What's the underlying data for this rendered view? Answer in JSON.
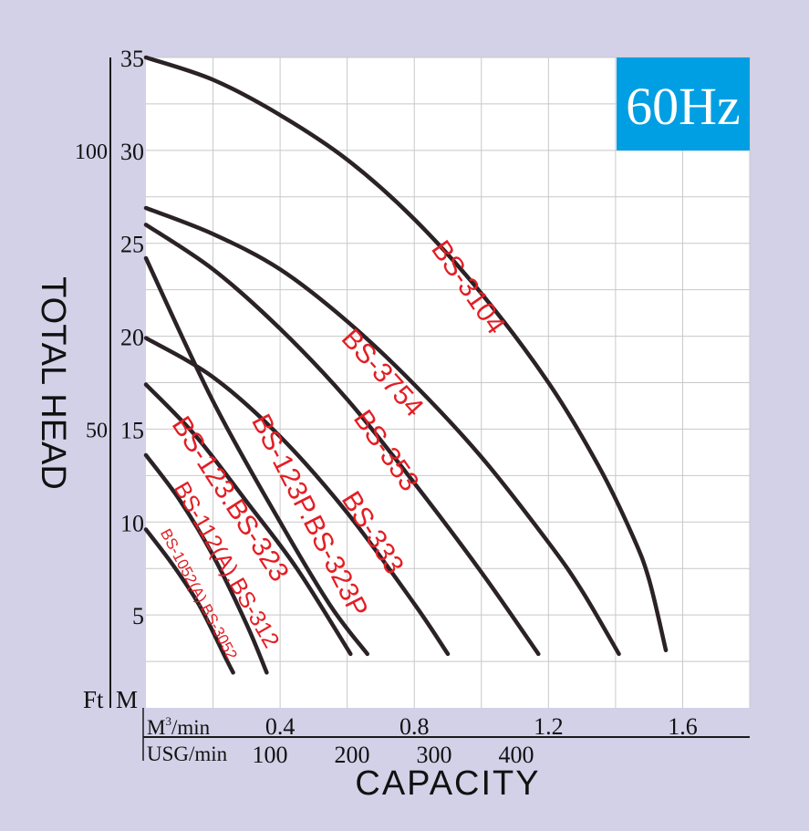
{
  "chart_data": {
    "type": "line",
    "title": "",
    "badge": "60Hz",
    "xlabel": "CAPACITY",
    "ylabel": "TOTAL HEAD",
    "x_units_label": "M3/min",
    "x_units_label_base": "M",
    "x_units_label_sup": "3",
    "x_units_label_rest": "/min",
    "x2_units_label": "USG/min",
    "y_units_label": "M",
    "y2_units_label": "Ft",
    "xlim": [
      0,
      1.8
    ],
    "ylim": [
      0,
      35
    ],
    "x_ticks": [
      {
        "value": 0.4,
        "label": "0.4"
      },
      {
        "value": 0.8,
        "label": "0.8"
      },
      {
        "value": 1.2,
        "label": "1.2"
      },
      {
        "value": 1.6,
        "label": "1.6"
      }
    ],
    "x2_ticks": [
      {
        "value": 100,
        "label": "100"
      },
      {
        "value": 200,
        "label": "200"
      },
      {
        "value": 300,
        "label": "300"
      },
      {
        "value": 400,
        "label": "400"
      }
    ],
    "y_ticks": [
      {
        "value": 5,
        "label": "5"
      },
      {
        "value": 10,
        "label": "10"
      },
      {
        "value": 15,
        "label": "15"
      },
      {
        "value": 20,
        "label": "20"
      },
      {
        "value": 25,
        "label": "25"
      },
      {
        "value": 30,
        "label": "30"
      },
      {
        "value": 35,
        "label": "35"
      }
    ],
    "y2_ticks": [
      {
        "value": 50,
        "label": "50"
      },
      {
        "value": 100,
        "label": "100"
      }
    ],
    "grid": true,
    "colors": {
      "background": "#D3D1E8",
      "plot_background": "#FFFFFF",
      "grid": "#C8C8C8",
      "curve": "#2A2226",
      "label": "#E31E24",
      "badge_bg": "#009FE3",
      "badge_text": "#FFFFFF",
      "axis": "#1A1A1A"
    },
    "series": [
      {
        "name": "BS-3104",
        "x": [
          0,
          0.2,
          0.4,
          0.6,
          0.8,
          1.0,
          1.2,
          1.35,
          1.45,
          1.5,
          1.55
        ],
        "y": [
          35,
          33.8,
          31.9,
          29.5,
          26.3,
          22.3,
          17.5,
          13.0,
          9.3,
          6.9,
          3.1
        ]
      },
      {
        "name": "BS-3754",
        "x": [
          0,
          0.2,
          0.4,
          0.6,
          0.8,
          1.0,
          1.2,
          1.3,
          1.41
        ],
        "y": [
          26.9,
          25.5,
          23.6,
          20.8,
          17.4,
          13.5,
          8.9,
          6.3,
          2.9
        ]
      },
      {
        "name": "BS-353",
        "x": [
          0,
          0.2,
          0.4,
          0.6,
          0.8,
          1.0,
          1.17
        ],
        "y": [
          26.0,
          23.6,
          20.4,
          16.6,
          12.1,
          7.3,
          2.9
        ]
      },
      {
        "name": "BS-333",
        "x": [
          0,
          0.2,
          0.4,
          0.6,
          0.8,
          0.9
        ],
        "y": [
          19.9,
          17.8,
          14.6,
          10.5,
          5.6,
          2.9
        ]
      },
      {
        "name": "BS-123P.BS-323P",
        "x": [
          0,
          0.2,
          0.4,
          0.55,
          0.66
        ],
        "y": [
          24.2,
          16.5,
          10.0,
          5.5,
          2.9
        ]
      },
      {
        "name": "BS-123.BS-323",
        "x": [
          0,
          0.15,
          0.3,
          0.45,
          0.61
        ],
        "y": [
          17.4,
          14.6,
          11.1,
          7.5,
          2.9
        ]
      },
      {
        "name": "BS-112(A).BS-312",
        "x": [
          0,
          0.1,
          0.2,
          0.3,
          0.36
        ],
        "y": [
          13.6,
          11.2,
          8.2,
          4.5,
          1.9
        ]
      },
      {
        "name": "BS-1052(A).BS-3052",
        "x": [
          0,
          0.08,
          0.16,
          0.24,
          0.26
        ],
        "y": [
          9.6,
          7.7,
          5.5,
          2.6,
          1.9
        ]
      }
    ],
    "curve_labels": [
      {
        "series": "BS-3104",
        "text": "BS-3104"
      },
      {
        "series": "BS-3754",
        "text": "BS-3754"
      },
      {
        "series": "BS-353",
        "text": "BS-353"
      },
      {
        "series": "BS-333",
        "text": "BS-333"
      },
      {
        "series": "BS-123P.BS-323P",
        "text": "BS-123P.BS-323P"
      },
      {
        "series": "BS-123.BS-323",
        "text": "BS-123.BS-323"
      },
      {
        "series": "BS-112(A).BS-312",
        "text": "BS-112(A).BS-312"
      },
      {
        "series": "BS-1052(A).BS-3052",
        "text": "BS-1052(A).BS-3052"
      }
    ]
  }
}
